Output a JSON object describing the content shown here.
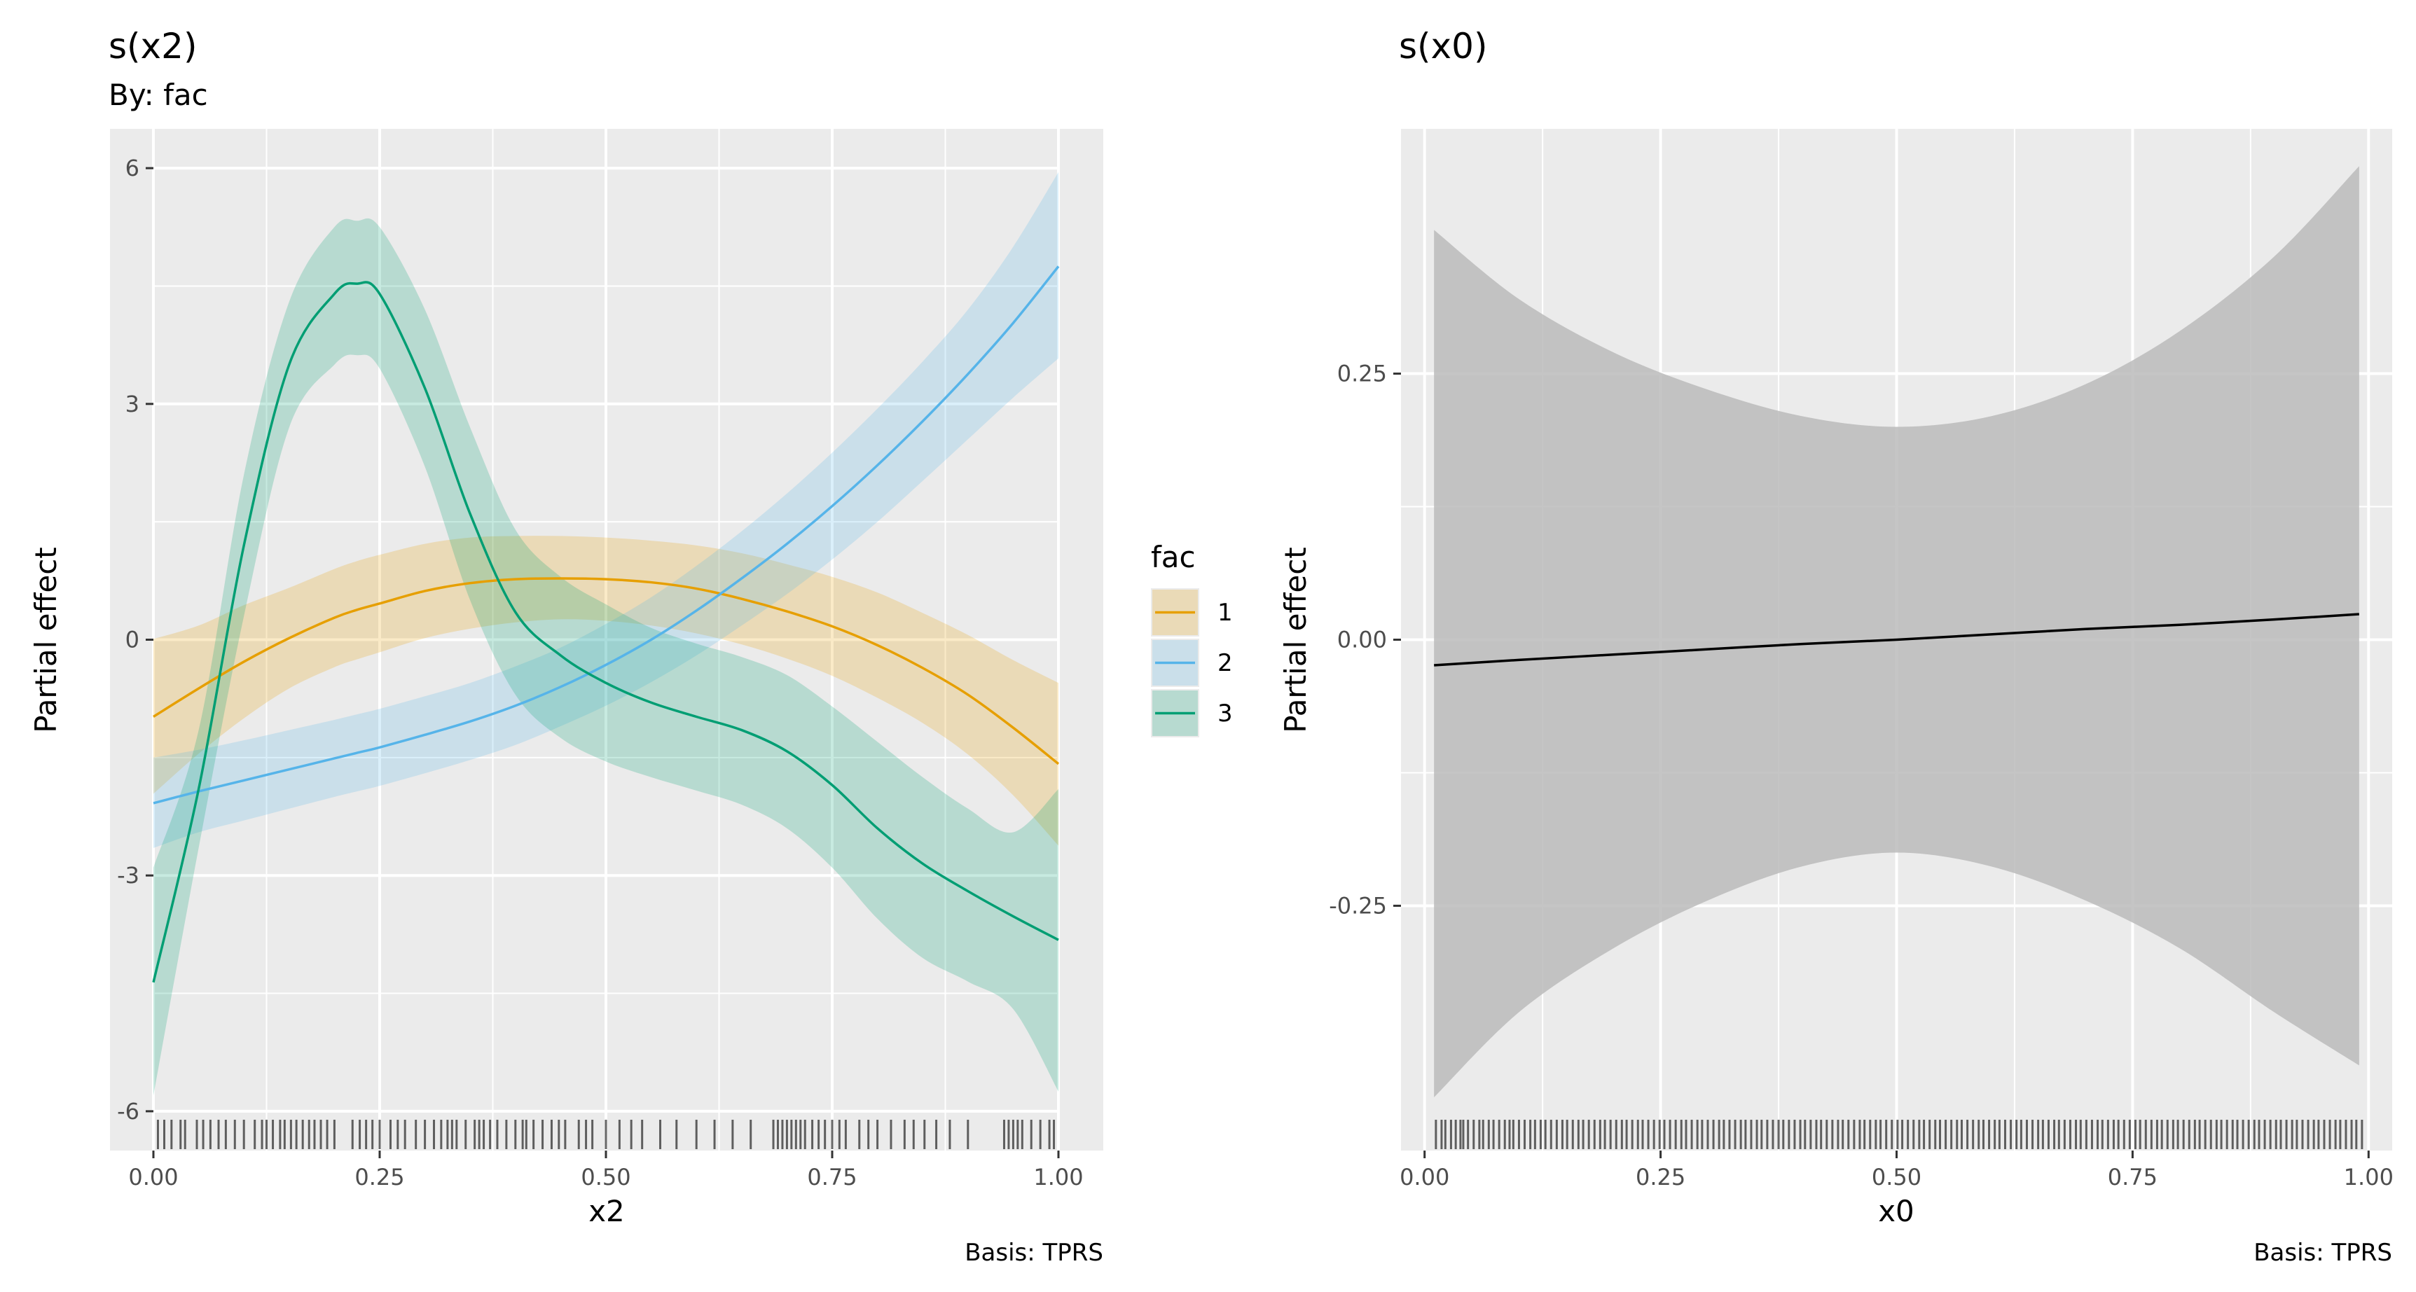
{
  "chart_data": [
    {
      "type": "line",
      "title": "s(x2)",
      "subtitle": "By: fac",
      "xlabel": "x2",
      "ylabel": "Partial effect",
      "caption": "Basis: TPRS",
      "xlim": [
        0,
        1
      ],
      "ylim": [
        -6.5,
        6.5
      ],
      "xticks": [
        0,
        0.25,
        0.5,
        0.75,
        1
      ],
      "xtick_labels": [
        "0.00",
        "0.25",
        "0.50",
        "0.75",
        "1.00"
      ],
      "yticks": [
        -6,
        -3,
        0,
        3,
        6
      ],
      "ytick_labels": [
        "-6",
        "-3",
        "0",
        "3",
        "6"
      ],
      "grid": true,
      "legend": {
        "title": "fac",
        "placement": "right",
        "entries": [
          "1",
          "2",
          "3"
        ]
      },
      "x": [
        0,
        0.05,
        0.1,
        0.15,
        0.2,
        0.225,
        0.25,
        0.3,
        0.35,
        0.4,
        0.45,
        0.5,
        0.55,
        0.6,
        0.65,
        0.7,
        0.75,
        0.8,
        0.85,
        0.9,
        0.95,
        1.0
      ],
      "series": [
        {
          "name": "1",
          "color": "#E69F00",
          "values": [
            -0.98,
            -0.62,
            -0.28,
            0.02,
            0.28,
            0.38,
            0.46,
            0.62,
            0.72,
            0.77,
            0.78,
            0.77,
            0.73,
            0.65,
            0.52,
            0.36,
            0.17,
            -0.07,
            -0.36,
            -0.7,
            -1.12,
            -1.58
          ],
          "lower": [
            -1.96,
            -1.45,
            -1.0,
            -0.62,
            -0.35,
            -0.25,
            -0.16,
            0.02,
            0.14,
            0.22,
            0.26,
            0.24,
            0.18,
            0.08,
            -0.06,
            -0.24,
            -0.46,
            -0.74,
            -1.06,
            -1.46,
            -1.98,
            -2.62
          ],
          "upper": [
            0.01,
            0.18,
            0.44,
            0.66,
            0.9,
            1.0,
            1.08,
            1.22,
            1.3,
            1.32,
            1.32,
            1.3,
            1.26,
            1.2,
            1.1,
            0.96,
            0.8,
            0.6,
            0.34,
            0.06,
            -0.26,
            -0.55
          ]
        },
        {
          "name": "2",
          "color": "#56B4E9",
          "values": [
            -2.08,
            -1.93,
            -1.79,
            -1.65,
            -1.51,
            -1.44,
            -1.37,
            -1.21,
            -1.04,
            -0.84,
            -0.6,
            -0.32,
            0.0,
            0.37,
            0.78,
            1.22,
            1.7,
            2.22,
            2.78,
            3.38,
            4.03,
            4.75
          ],
          "lower": [
            -2.65,
            -2.45,
            -2.3,
            -2.15,
            -2.0,
            -1.93,
            -1.86,
            -1.7,
            -1.53,
            -1.34,
            -1.1,
            -0.84,
            -0.54,
            -0.2,
            0.18,
            0.58,
            1.02,
            1.5,
            2.02,
            2.55,
            3.08,
            3.58
          ],
          "upper": [
            -1.5,
            -1.4,
            -1.28,
            -1.15,
            -1.02,
            -0.95,
            -0.88,
            -0.72,
            -0.55,
            -0.34,
            -0.1,
            0.2,
            0.54,
            0.94,
            1.38,
            1.86,
            2.38,
            2.94,
            3.54,
            4.2,
            5.0,
            5.95
          ]
        },
        {
          "name": "3",
          "color": "#009E73",
          "values": [
            -4.36,
            -1.9,
            1.2,
            3.5,
            4.4,
            4.53,
            4.4,
            3.2,
            1.6,
            0.35,
            -0.2,
            -0.55,
            -0.8,
            -0.98,
            -1.15,
            -1.42,
            -1.85,
            -2.4,
            -2.85,
            -3.2,
            -3.52,
            -3.82
          ],
          "lower": [
            -5.8,
            -2.65,
            0.3,
            2.7,
            3.5,
            3.62,
            3.45,
            2.2,
            0.5,
            -0.7,
            -1.25,
            -1.55,
            -1.75,
            -1.92,
            -2.1,
            -2.4,
            -2.9,
            -3.55,
            -4.05,
            -4.35,
            -4.7,
            -5.75
          ],
          "upper": [
            -2.9,
            -1.15,
            2.1,
            4.3,
            5.25,
            5.33,
            5.25,
            4.2,
            2.7,
            1.4,
            0.8,
            0.45,
            0.15,
            -0.05,
            -0.22,
            -0.45,
            -0.85,
            -1.3,
            -1.75,
            -2.15,
            -2.45,
            -1.9
          ]
        }
      ],
      "rug": [
        0.005,
        0.012,
        0.02,
        0.03,
        0.035,
        0.048,
        0.055,
        0.063,
        0.072,
        0.08,
        0.09,
        0.1,
        0.112,
        0.12,
        0.125,
        0.132,
        0.14,
        0.145,
        0.152,
        0.158,
        0.165,
        0.172,
        0.178,
        0.185,
        0.192,
        0.2,
        0.22,
        0.228,
        0.235,
        0.242,
        0.25,
        0.262,
        0.27,
        0.278,
        0.29,
        0.3,
        0.31,
        0.318,
        0.325,
        0.33,
        0.335,
        0.345,
        0.355,
        0.36,
        0.365,
        0.372,
        0.38,
        0.39,
        0.4,
        0.408,
        0.412,
        0.42,
        0.43,
        0.44,
        0.448,
        0.455,
        0.47,
        0.478,
        0.485,
        0.5,
        0.515,
        0.528,
        0.54,
        0.56,
        0.578,
        0.6,
        0.62,
        0.64,
        0.66,
        0.685,
        0.69,
        0.695,
        0.7,
        0.705,
        0.71,
        0.715,
        0.72,
        0.728,
        0.735,
        0.742,
        0.75,
        0.758,
        0.765,
        0.78,
        0.79,
        0.8,
        0.815,
        0.83,
        0.84,
        0.852,
        0.865,
        0.88,
        0.9,
        0.94,
        0.945,
        0.95,
        0.955,
        0.96,
        0.97,
        0.98,
        0.99,
        0.995
      ]
    },
    {
      "type": "line",
      "title": "s(x0)",
      "xlabel": "x0",
      "ylabel": "Partial effect",
      "caption": "Basis: TPRS",
      "xlim": [
        -0.025,
        1.025
      ],
      "ylim": [
        -0.48,
        0.48
      ],
      "xticks": [
        0,
        0.25,
        0.5,
        0.75,
        1
      ],
      "xtick_labels": [
        "0.00",
        "0.25",
        "0.50",
        "0.75",
        "1.00"
      ],
      "yticks": [
        -0.25,
        0,
        0.25
      ],
      "ytick_labels": [
        "-0.25",
        "0.00",
        "0.25"
      ],
      "grid": true,
      "color": "#000000",
      "band_color": "#bbbbbb",
      "x": [
        0.01,
        0.1,
        0.2,
        0.3,
        0.4,
        0.5,
        0.6,
        0.7,
        0.8,
        0.9,
        0.99
      ],
      "values": [
        -0.024,
        -0.019,
        -0.014,
        -0.009,
        -0.004,
        0.0,
        0.005,
        0.01,
        0.014,
        0.019,
        0.024
      ],
      "lower": [
        -0.43,
        -0.35,
        -0.29,
        -0.245,
        -0.213,
        -0.2,
        -0.213,
        -0.245,
        -0.29,
        -0.35,
        -0.4
      ],
      "upper": [
        0.385,
        0.32,
        0.27,
        0.235,
        0.21,
        0.2,
        0.21,
        0.24,
        0.29,
        0.36,
        0.445
      ],
      "rug": [
        0.012,
        0.018,
        0.022,
        0.028,
        0.033,
        0.038,
        0.041,
        0.046,
        0.052,
        0.058,
        0.062,
        0.068,
        0.073,
        0.079,
        0.085,
        0.09,
        0.094,
        0.1,
        0.106,
        0.112,
        0.117,
        0.123,
        0.128,
        0.134,
        0.14,
        0.146,
        0.151,
        0.157,
        0.163,
        0.168,
        0.174,
        0.18,
        0.186,
        0.191,
        0.197,
        0.203,
        0.209,
        0.214,
        0.22,
        0.226,
        0.231,
        0.237,
        0.243,
        0.249,
        0.254,
        0.26,
        0.266,
        0.272,
        0.277,
        0.283,
        0.289,
        0.294,
        0.3,
        0.306,
        0.312,
        0.317,
        0.323,
        0.329,
        0.335,
        0.34,
        0.346,
        0.352,
        0.357,
        0.363,
        0.369,
        0.375,
        0.38,
        0.386,
        0.392,
        0.398,
        0.403,
        0.409,
        0.415,
        0.42,
        0.426,
        0.432,
        0.438,
        0.443,
        0.449,
        0.455,
        0.461,
        0.466,
        0.472,
        0.478,
        0.483,
        0.489,
        0.495,
        0.501,
        0.506,
        0.512,
        0.518,
        0.524,
        0.529,
        0.535,
        0.541,
        0.546,
        0.552,
        0.558,
        0.564,
        0.569,
        0.575,
        0.581,
        0.587,
        0.592,
        0.598,
        0.604,
        0.609,
        0.615,
        0.621,
        0.627,
        0.632,
        0.638,
        0.644,
        0.65,
        0.655,
        0.661,
        0.667,
        0.672,
        0.678,
        0.684,
        0.69,
        0.695,
        0.701,
        0.707,
        0.713,
        0.718,
        0.724,
        0.73,
        0.735,
        0.741,
        0.747,
        0.753,
        0.758,
        0.764,
        0.77,
        0.776,
        0.781,
        0.787,
        0.793,
        0.798,
        0.804,
        0.81,
        0.816,
        0.821,
        0.827,
        0.833,
        0.839,
        0.844,
        0.85,
        0.856,
        0.861,
        0.867,
        0.873,
        0.879,
        0.884,
        0.89,
        0.896,
        0.902,
        0.907,
        0.913,
        0.919,
        0.924,
        0.93,
        0.936,
        0.942,
        0.947,
        0.953,
        0.959,
        0.965,
        0.97,
        0.976,
        0.982,
        0.987,
        0.993
      ]
    }
  ]
}
